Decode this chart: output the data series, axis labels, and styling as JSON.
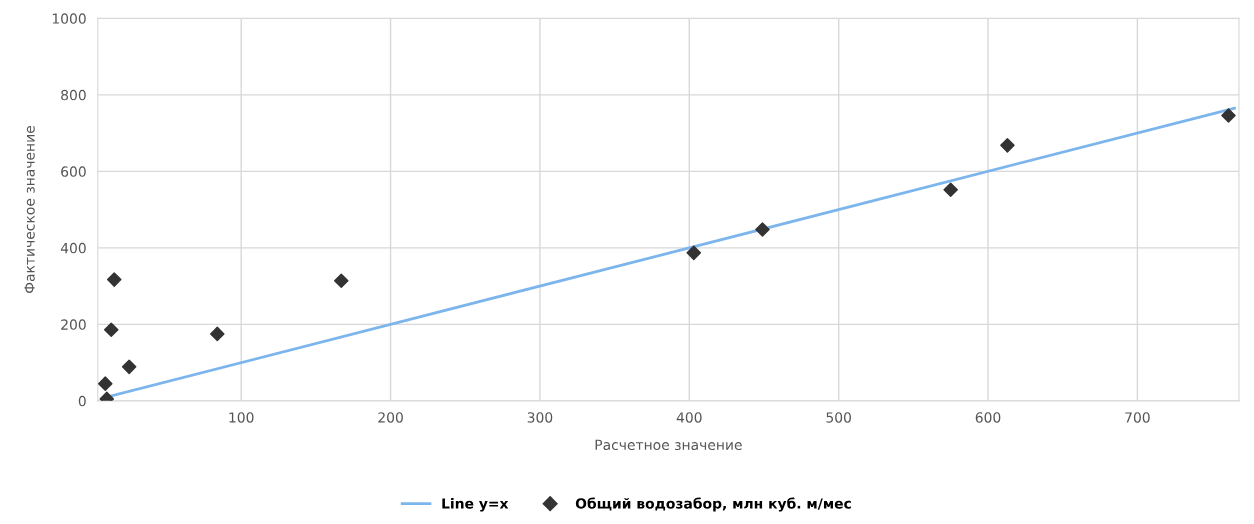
{
  "chart_data": {
    "type": "scatter",
    "xlabel": "Расчетное значение",
    "ylabel": "Фактическое значение",
    "xlim": [
      4,
      768
    ],
    "ylim": [
      0,
      1000
    ],
    "xticks": [
      100,
      200,
      300,
      400,
      500,
      600,
      700
    ],
    "yticks": [
      0,
      200,
      400,
      600,
      800,
      1000
    ],
    "grid": true,
    "legend": "bottom",
    "series": [
      {
        "name": "Line y=x",
        "type": "line",
        "color": "#7cb5ec",
        "marker": "none",
        "line_style": "solid",
        "x": [
          8,
          765
        ],
        "values": [
          8,
          765
        ]
      },
      {
        "name": "Общий водозабор, млн куб. м/мес",
        "color": "#333333",
        "marker": "diamond",
        "x": [
          9,
          10,
          13,
          15,
          25,
          84,
          167,
          403,
          449,
          575,
          613,
          761
        ],
        "values": [
          45,
          5,
          186,
          317,
          89,
          175,
          314,
          387,
          448,
          552,
          668,
          746
        ]
      }
    ]
  }
}
